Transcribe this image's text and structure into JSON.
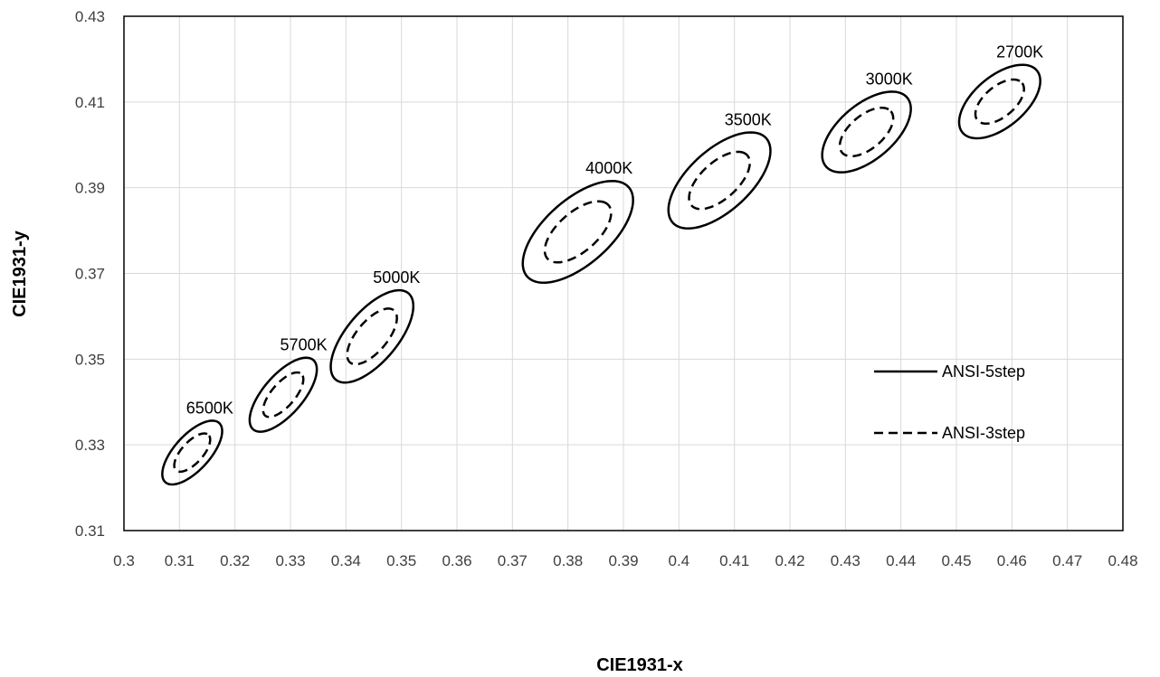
{
  "chart_data": {
    "type": "scatter",
    "xlabel": "CIE1931-x",
    "ylabel": "CIE1931-y",
    "xlim": [
      0.3,
      0.48
    ],
    "ylim": [
      0.31,
      0.43
    ],
    "x_ticks": [
      "0.3",
      "0.31",
      "0.32",
      "0.33",
      "0.34",
      "0.35",
      "0.36",
      "0.37",
      "0.38",
      "0.39",
      "0.4",
      "0.41",
      "0.42",
      "0.43",
      "0.44",
      "0.45",
      "0.46",
      "0.47",
      "0.48"
    ],
    "y_ticks": [
      "0.31",
      "0.33",
      "0.35",
      "0.37",
      "0.39",
      "0.41",
      "0.43"
    ],
    "grid": true,
    "legend_position": "right-middle",
    "series": [
      {
        "name": "ANSI-5step",
        "line_style": "solid",
        "color": "#000000"
      },
      {
        "name": "ANSI-3step",
        "line_style": "dashed",
        "color": "#000000"
      }
    ],
    "ellipses": [
      {
        "label": "6500K",
        "center": [
          0.3123,
          0.3282
        ],
        "five_step": {
          "a": 0.0085,
          "b": 0.0035,
          "angle_deg": 58
        },
        "three_step": {
          "a": 0.0051,
          "b": 0.0021,
          "angle_deg": 58
        }
      },
      {
        "label": "5700K",
        "center": [
          0.3287,
          0.3417
        ],
        "five_step": {
          "a": 0.0098,
          "b": 0.0039,
          "angle_deg": 59
        },
        "three_step": {
          "a": 0.0059,
          "b": 0.0023,
          "angle_deg": 59
        }
      },
      {
        "label": "5000K",
        "center": [
          0.3447,
          0.3553
        ],
        "five_step": {
          "a": 0.0121,
          "b": 0.005,
          "angle_deg": 60
        },
        "three_step": {
          "a": 0.0073,
          "b": 0.003,
          "angle_deg": 60
        }
      },
      {
        "label": "4000K",
        "center": [
          0.3818,
          0.3797
        ],
        "five_step": {
          "a": 0.014,
          "b": 0.0066,
          "angle_deg": 53
        },
        "three_step": {
          "a": 0.0084,
          "b": 0.004,
          "angle_deg": 53
        }
      },
      {
        "label": "3500K",
        "center": [
          0.4073,
          0.3917
        ],
        "five_step": {
          "a": 0.0131,
          "b": 0.0062,
          "angle_deg": 54
        },
        "three_step": {
          "a": 0.0078,
          "b": 0.0037,
          "angle_deg": 54
        }
      },
      {
        "label": "3000K",
        "center": [
          0.4338,
          0.403
        ],
        "five_step": {
          "a": 0.011,
          "b": 0.0056,
          "angle_deg": 53
        },
        "three_step": {
          "a": 0.0066,
          "b": 0.0034,
          "angle_deg": 53
        }
      },
      {
        "label": "2700K",
        "center": [
          0.4578,
          0.4101
        ],
        "five_step": {
          "a": 0.01,
          "b": 0.0052,
          "angle_deg": 53
        },
        "three_step": {
          "a": 0.006,
          "b": 0.0031,
          "angle_deg": 53
        }
      }
    ]
  }
}
